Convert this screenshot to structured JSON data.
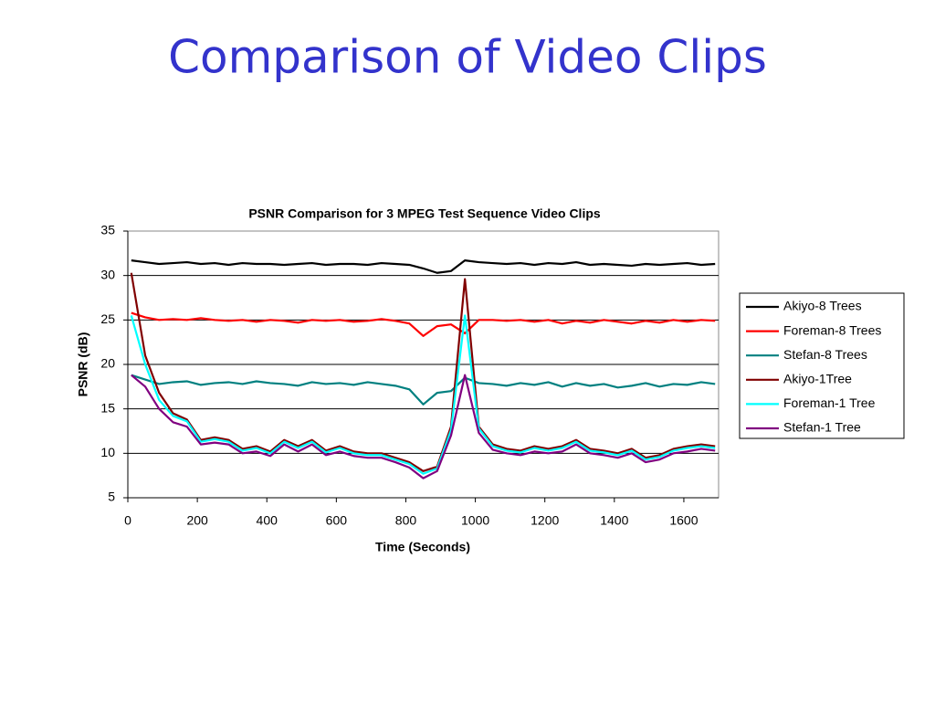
{
  "heading": "Comparison of Video Clips",
  "chart_data": {
    "type": "line",
    "title": "PSNR Comparison for 3 MPEG Test Sequence Video Clips",
    "x_label": "Time (Seconds)",
    "y_label": "PSNR (dB)",
    "xlim": [
      0,
      1700
    ],
    "xticks": [
      0,
      200,
      400,
      600,
      800,
      1000,
      1200,
      1400,
      1600
    ],
    "ylim": [
      5,
      35
    ],
    "yticks": [
      5,
      10,
      15,
      20,
      25,
      30,
      35
    ],
    "grid": true,
    "legend": "right",
    "x": [
      10,
      50,
      90,
      130,
      170,
      210,
      250,
      290,
      330,
      370,
      410,
      450,
      490,
      530,
      570,
      610,
      650,
      690,
      730,
      770,
      810,
      850,
      890,
      930,
      970,
      1010,
      1050,
      1090,
      1130,
      1170,
      1210,
      1250,
      1290,
      1330,
      1370,
      1410,
      1450,
      1490,
      1530,
      1570,
      1610,
      1650,
      1690
    ],
    "series": [
      {
        "name": "Akiyo-8 Trees",
        "color": "#000000",
        "values": [
          31.7,
          31.5,
          31.3,
          31.4,
          31.5,
          31.3,
          31.4,
          31.2,
          31.4,
          31.3,
          31.3,
          31.2,
          31.3,
          31.4,
          31.2,
          31.3,
          31.3,
          31.2,
          31.4,
          31.3,
          31.2,
          30.8,
          30.3,
          30.5,
          31.7,
          31.5,
          31.4,
          31.3,
          31.4,
          31.2,
          31.4,
          31.3,
          31.5,
          31.2,
          31.3,
          31.2,
          31.1,
          31.3,
          31.2,
          31.3,
          31.4,
          31.2,
          31.3
        ]
      },
      {
        "name": "Foreman-8 Trees",
        "color": "#ff0000",
        "values": [
          25.8,
          25.3,
          25.0,
          25.1,
          25.0,
          25.2,
          25.0,
          24.9,
          25.0,
          24.8,
          25.0,
          24.9,
          24.7,
          25.0,
          24.9,
          25.0,
          24.8,
          24.9,
          25.1,
          24.9,
          24.6,
          23.2,
          24.3,
          24.5,
          23.5,
          25.0,
          25.0,
          24.9,
          25.0,
          24.8,
          25.0,
          24.6,
          24.9,
          24.7,
          25.0,
          24.8,
          24.6,
          24.9,
          24.7,
          25.0,
          24.8,
          25.0,
          24.9
        ]
      },
      {
        "name": "Stefan-8 Trees",
        "color": "#008080",
        "values": [
          18.8,
          18.3,
          17.8,
          18.0,
          18.1,
          17.7,
          17.9,
          18.0,
          17.8,
          18.1,
          17.9,
          17.8,
          17.6,
          18.0,
          17.8,
          17.9,
          17.7,
          18.0,
          17.8,
          17.6,
          17.2,
          15.5,
          16.8,
          17.0,
          18.5,
          17.9,
          17.8,
          17.6,
          17.9,
          17.7,
          18.0,
          17.5,
          17.9,
          17.6,
          17.8,
          17.4,
          17.6,
          17.9,
          17.5,
          17.8,
          17.7,
          18.0,
          17.8
        ]
      },
      {
        "name": "Akiyo-1Tree",
        "color": "#800000",
        "values": [
          30.3,
          21.0,
          16.8,
          14.5,
          13.8,
          11.5,
          11.8,
          11.5,
          10.5,
          10.8,
          10.2,
          11.5,
          10.8,
          11.5,
          10.3,
          10.8,
          10.2,
          10.0,
          10.0,
          9.5,
          9.0,
          8.0,
          8.5,
          13.0,
          29.6,
          13.0,
          11.0,
          10.5,
          10.3,
          10.8,
          10.5,
          10.8,
          11.5,
          10.5,
          10.3,
          10.0,
          10.5,
          9.5,
          9.8,
          10.5,
          10.8,
          11.0,
          10.8
        ]
      },
      {
        "name": "Foreman-1 Tree",
        "color": "#00ffff",
        "values": [
          25.5,
          20.0,
          16.0,
          14.2,
          13.6,
          11.3,
          11.6,
          11.3,
          10.3,
          10.6,
          10.0,
          11.3,
          10.6,
          11.3,
          10.1,
          10.6,
          10.0,
          9.8,
          9.8,
          9.3,
          8.8,
          7.7,
          8.3,
          12.6,
          25.5,
          12.8,
          10.8,
          10.3,
          10.1,
          10.6,
          10.3,
          10.6,
          11.3,
          10.3,
          10.1,
          9.8,
          10.3,
          9.3,
          9.6,
          10.3,
          10.6,
          10.8,
          10.6
        ]
      },
      {
        "name": "Stefan-1 Tree",
        "color": "#800080",
        "values": [
          18.8,
          17.5,
          15.0,
          13.5,
          13.0,
          11.0,
          11.2,
          11.0,
          10.0,
          10.2,
          9.7,
          11.0,
          10.2,
          11.0,
          9.8,
          10.2,
          9.7,
          9.5,
          9.5,
          9.0,
          8.4,
          7.2,
          8.0,
          12.0,
          18.8,
          12.3,
          10.4,
          10.0,
          9.8,
          10.2,
          10.0,
          10.2,
          11.0,
          10.0,
          9.8,
          9.5,
          10.0,
          9.0,
          9.3,
          10.0,
          10.2,
          10.5,
          10.3
        ]
      }
    ]
  }
}
